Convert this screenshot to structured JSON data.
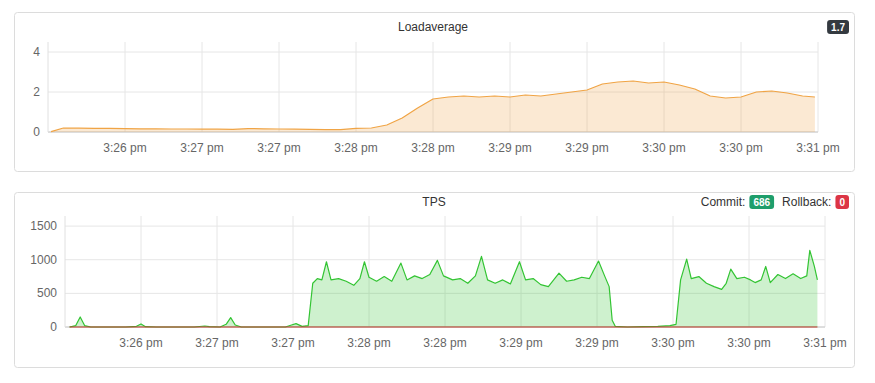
{
  "chart_data": [
    {
      "type": "area",
      "title": "Loadaverage",
      "current": 1.7,
      "color": "#f0a445",
      "grid": true,
      "xlim": [
        25.5,
        30.5
      ],
      "xticks": [
        {
          "value": 26,
          "label": "3:26 pm"
        },
        {
          "value": 26.5,
          "label": "3:27 pm"
        },
        {
          "value": 27,
          "label": "3:27 pm"
        },
        {
          "value": 27.5,
          "label": "3:28 pm"
        },
        {
          "value": 28,
          "label": "3:28 pm"
        },
        {
          "value": 28.5,
          "label": "3:29 pm"
        },
        {
          "value": 29,
          "label": "3:29 pm"
        },
        {
          "value": 29.5,
          "label": "3:30 pm"
        },
        {
          "value": 30,
          "label": "3:30 pm"
        },
        {
          "value": 30.5,
          "label": "3:31 pm"
        }
      ],
      "ylim": [
        0,
        4.5
      ],
      "yticks": [
        0,
        2,
        4
      ],
      "x": [
        25.52,
        25.6,
        25.7,
        25.8,
        25.9,
        26.0,
        26.1,
        26.2,
        26.3,
        26.4,
        26.5,
        26.6,
        26.7,
        26.8,
        26.9,
        27.0,
        27.1,
        27.2,
        27.3,
        27.4,
        27.5,
        27.6,
        27.7,
        27.8,
        27.9,
        28.0,
        28.1,
        28.2,
        28.3,
        28.4,
        28.5,
        28.6,
        28.7,
        28.8,
        28.9,
        29.0,
        29.1,
        29.2,
        29.3,
        29.4,
        29.5,
        29.6,
        29.7,
        29.8,
        29.9,
        30.0,
        30.1,
        30.2,
        30.3,
        30.4,
        30.48
      ],
      "values": [
        0.02,
        0.2,
        0.19,
        0.18,
        0.18,
        0.17,
        0.16,
        0.16,
        0.15,
        0.15,
        0.14,
        0.14,
        0.13,
        0.17,
        0.16,
        0.15,
        0.14,
        0.13,
        0.12,
        0.12,
        0.18,
        0.2,
        0.35,
        0.7,
        1.2,
        1.65,
        1.75,
        1.8,
        1.75,
        1.8,
        1.75,
        1.85,
        1.8,
        1.9,
        2.0,
        2.1,
        2.4,
        2.5,
        2.55,
        2.45,
        2.5,
        2.35,
        2.15,
        1.8,
        1.7,
        1.75,
        2.0,
        2.05,
        1.95,
        1.8,
        1.75
      ]
    },
    {
      "type": "area",
      "title": "TPS",
      "grid": true,
      "xlim": [
        25.5,
        30.5
      ],
      "xticks": [
        {
          "value": 26,
          "label": "3:26 pm"
        },
        {
          "value": 26.5,
          "label": "3:27 pm"
        },
        {
          "value": 27,
          "label": "3:27 pm"
        },
        {
          "value": 27.5,
          "label": "3:28 pm"
        },
        {
          "value": 28,
          "label": "3:28 pm"
        },
        {
          "value": 28.5,
          "label": "3:29 pm"
        },
        {
          "value": 29,
          "label": "3:29 pm"
        },
        {
          "value": 29.5,
          "label": "3:30 pm"
        },
        {
          "value": 30,
          "label": "3:30 pm"
        },
        {
          "value": 30.5,
          "label": "3:31 pm"
        }
      ],
      "ylim": [
        0,
        1650
      ],
      "yticks": [
        0,
        500,
        1000,
        1500
      ],
      "series": [
        {
          "name": "Commit:",
          "color": "#33c433",
          "current": 686,
          "x": [
            25.53,
            25.57,
            25.6,
            25.63,
            25.67,
            25.9,
            25.97,
            26.0,
            26.03,
            26.1,
            26.35,
            26.42,
            26.45,
            26.52,
            26.56,
            26.59,
            26.62,
            26.66,
            26.95,
            26.99,
            27.02,
            27.06,
            27.1,
            27.13,
            27.16,
            27.19,
            27.22,
            27.25,
            27.3,
            27.35,
            27.4,
            27.44,
            27.47,
            27.5,
            27.55,
            27.6,
            27.65,
            27.71,
            27.75,
            27.8,
            27.85,
            27.9,
            27.95,
            27.99,
            28.05,
            28.1,
            28.15,
            28.2,
            28.24,
            28.28,
            28.33,
            28.38,
            28.43,
            28.49,
            28.53,
            28.58,
            28.63,
            28.68,
            28.75,
            28.8,
            28.85,
            28.9,
            28.95,
            29.01,
            29.05,
            29.08,
            29.1,
            29.12,
            29.2,
            29.3,
            29.4,
            29.48,
            29.52,
            29.55,
            29.59,
            29.62,
            29.67,
            29.72,
            29.77,
            29.82,
            29.85,
            29.88,
            29.92,
            29.97,
            30.01,
            30.04,
            30.08,
            30.11,
            30.14,
            30.19,
            30.24,
            30.29,
            30.34,
            30.38,
            30.4,
            30.43,
            30.45
          ],
          "values": [
            0,
            20,
            150,
            20,
            0,
            0,
            10,
            45,
            5,
            0,
            0,
            15,
            5,
            0,
            40,
            140,
            30,
            0,
            0,
            30,
            50,
            10,
            20,
            650,
            720,
            700,
            970,
            700,
            720,
            680,
            620,
            720,
            970,
            740,
            680,
            750,
            680,
            950,
            700,
            760,
            720,
            780,
            990,
            760,
            700,
            720,
            650,
            760,
            1050,
            700,
            650,
            700,
            640,
            970,
            700,
            720,
            630,
            600,
            800,
            680,
            700,
            740,
            720,
            980,
            760,
            600,
            100,
            10,
            0,
            5,
            10,
            20,
            40,
            700,
            1010,
            720,
            750,
            650,
            600,
            560,
            650,
            860,
            720,
            740,
            700,
            660,
            700,
            900,
            660,
            780,
            720,
            790,
            720,
            760,
            1140,
            900,
            700
          ]
        },
        {
          "name": "Rollback:",
          "color": "#c0392b",
          "current": 0,
          "type": "line",
          "x": [
            25.53,
            30.45
          ],
          "values": [
            0,
            0
          ]
        }
      ]
    }
  ]
}
